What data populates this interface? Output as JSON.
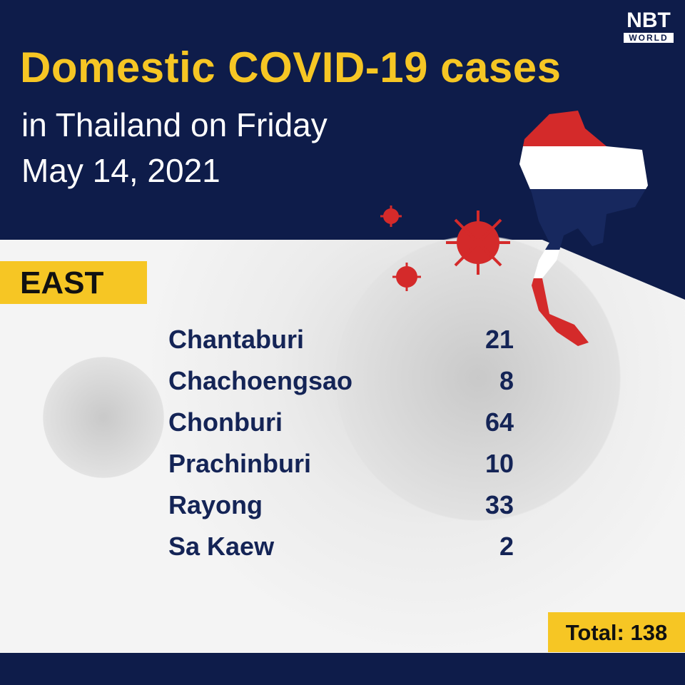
{
  "logo": {
    "top": "NBT",
    "bottom": "WORLD"
  },
  "header": {
    "title": "Domestic COVID-19 cases",
    "line1": "in Thailand on Friday",
    "line2": "May 14, 2021"
  },
  "region": "EAST",
  "rows": [
    {
      "province": "Chantaburi",
      "cases": "21"
    },
    {
      "province": "Chachoengsao",
      "cases": "8"
    },
    {
      "province": "Chonburi",
      "cases": "64"
    },
    {
      "province": "Prachinburi",
      "cases": "10"
    },
    {
      "province": "Rayong",
      "cases": "33"
    },
    {
      "province": "Sa Kaew",
      "cases": "2"
    }
  ],
  "total": "Total: 138",
  "colors": {
    "navy": "#0e1c4a",
    "yellow": "#f6c624",
    "virus_red": "#d42a2a"
  }
}
